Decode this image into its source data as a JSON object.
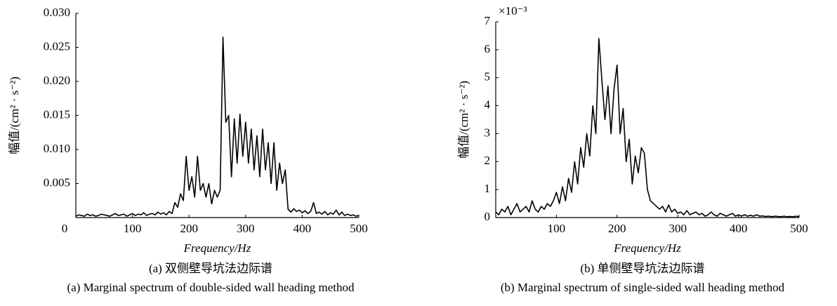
{
  "chart_data": [
    {
      "type": "line",
      "title": "(a) 双侧壁导坑法边际谱",
      "subtitle": "(a) Marginal spectrum of double-sided wall heading method",
      "x_label": "Frequency/Hz",
      "y_label": "幅值/(cm² · s⁻²)",
      "xlim": [
        0,
        500
      ],
      "xticks": [
        0,
        100,
        200,
        300,
        400,
        500
      ],
      "ylim": [
        0,
        0.03
      ],
      "yticks": [
        0.005,
        {
          "value": 0.01,
          "label": "0.010"
        },
        0.015,
        {
          "value": 0.02,
          "label": "0.020"
        },
        0.025,
        {
          "value": 0.03,
          "label": "0.030"
        }
      ],
      "series": [
        {
          "color": "#000000",
          "x": [
            0,
            5,
            10,
            15,
            20,
            25,
            30,
            35,
            40,
            45,
            50,
            55,
            60,
            65,
            70,
            75,
            80,
            85,
            90,
            95,
            100,
            105,
            110,
            115,
            120,
            125,
            130,
            135,
            140,
            145,
            150,
            155,
            160,
            165,
            170,
            175,
            180,
            185,
            190,
            195,
            200,
            205,
            210,
            215,
            220,
            225,
            230,
            235,
            240,
            245,
            250,
            255,
            260,
            265,
            270,
            275,
            280,
            285,
            290,
            295,
            300,
            305,
            310,
            315,
            320,
            325,
            330,
            335,
            340,
            345,
            350,
            355,
            360,
            365,
            370,
            375,
            380,
            385,
            390,
            395,
            400,
            405,
            410,
            415,
            420,
            425,
            430,
            435,
            440,
            445,
            450,
            455,
            460,
            465,
            470,
            475,
            480,
            485,
            490,
            495,
            500
          ],
          "values": [
            0.0002,
            0.0004,
            0.0003,
            0.0002,
            0.0005,
            0.0003,
            0.0004,
            0.0002,
            0.0003,
            0.0005,
            0.0004,
            0.0003,
            0.0002,
            0.0004,
            0.0006,
            0.0003,
            0.0004,
            0.0005,
            0.0002,
            0.0004,
            0.0006,
            0.0003,
            0.0005,
            0.0004,
            0.0007,
            0.0003,
            0.0005,
            0.0006,
            0.0004,
            0.0008,
            0.0005,
            0.0007,
            0.0004,
            0.0009,
            0.0006,
            0.0022,
            0.0015,
            0.0035,
            0.0025,
            0.009,
            0.004,
            0.006,
            0.003,
            0.009,
            0.004,
            0.005,
            0.003,
            0.005,
            0.002,
            0.004,
            0.003,
            0.004,
            0.0265,
            0.014,
            0.015,
            0.006,
            0.0145,
            0.008,
            0.0152,
            0.009,
            0.014,
            0.008,
            0.013,
            0.007,
            0.012,
            0.006,
            0.013,
            0.007,
            0.011,
            0.005,
            0.011,
            0.004,
            0.008,
            0.005,
            0.007,
            0.0012,
            0.0008,
            0.0013,
            0.0009,
            0.0011,
            0.0007,
            0.001,
            0.0006,
            0.0009,
            0.0022,
            0.0006,
            0.0008,
            0.0005,
            0.0009,
            0.0004,
            0.0007,
            0.0005,
            0.0011,
            0.0004,
            0.0008,
            0.0003,
            0.0005,
            0.0003,
            0.0004,
            0.0002,
            0.0003
          ]
        }
      ]
    },
    {
      "type": "line",
      "title": "(b) 单侧壁导坑法边际谱",
      "subtitle": "(b) Marginal spectrum of single-sided wall heading method",
      "x_label": "Frequency/Hz",
      "y_label": "幅值/(cm² · s⁻²)",
      "y_multiplier": "×10⁻³",
      "xlim": [
        0,
        500
      ],
      "xticks": [
        100,
        200,
        300,
        400,
        500
      ],
      "ylim": [
        0,
        7
      ],
      "yticks": [
        0,
        1,
        2,
        3,
        4,
        5,
        6,
        7
      ],
      "series": [
        {
          "color": "#000000",
          "x": [
            0,
            5,
            10,
            15,
            20,
            25,
            30,
            35,
            40,
            45,
            50,
            55,
            60,
            65,
            70,
            75,
            80,
            85,
            90,
            95,
            100,
            105,
            110,
            115,
            120,
            125,
            130,
            135,
            140,
            145,
            150,
            155,
            160,
            165,
            170,
            175,
            180,
            185,
            190,
            195,
            200,
            205,
            210,
            215,
            220,
            225,
            230,
            235,
            240,
            245,
            250,
            255,
            260,
            265,
            270,
            275,
            280,
            285,
            290,
            295,
            300,
            305,
            310,
            315,
            320,
            325,
            330,
            335,
            340,
            345,
            350,
            355,
            360,
            365,
            370,
            375,
            380,
            385,
            390,
            395,
            400,
            405,
            410,
            415,
            420,
            425,
            430,
            435,
            440,
            445,
            450,
            455,
            460,
            465,
            470,
            475,
            480,
            485,
            490,
            495,
            500
          ],
          "values": [
            0.2,
            0.1,
            0.3,
            0.2,
            0.4,
            0.1,
            0.3,
            0.5,
            0.2,
            0.3,
            0.4,
            0.2,
            0.6,
            0.3,
            0.2,
            0.4,
            0.3,
            0.5,
            0.4,
            0.6,
            0.9,
            0.5,
            1.1,
            0.6,
            1.4,
            0.9,
            2.0,
            1.2,
            2.5,
            1.8,
            3.0,
            2.2,
            4.0,
            3.0,
            6.4,
            4.9,
            3.5,
            4.7,
            3.0,
            4.6,
            5.45,
            3.0,
            3.9,
            2.0,
            2.8,
            1.2,
            2.2,
            1.6,
            2.5,
            2.3,
            1.0,
            0.6,
            0.5,
            0.4,
            0.3,
            0.4,
            0.2,
            0.45,
            0.2,
            0.3,
            0.15,
            0.2,
            0.1,
            0.25,
            0.1,
            0.15,
            0.2,
            0.1,
            0.15,
            0.05,
            0.1,
            0.2,
            0.1,
            0.05,
            0.15,
            0.1,
            0.05,
            0.1,
            0.15,
            0.05,
            0.1,
            0.05,
            0.1,
            0.05,
            0.08,
            0.05,
            0.1,
            0.05,
            0.06,
            0.04,
            0.05,
            0.03,
            0.05,
            0.04,
            0.03,
            0.05,
            0.03,
            0.04,
            0.03,
            0.05,
            0.03
          ]
        }
      ]
    }
  ]
}
